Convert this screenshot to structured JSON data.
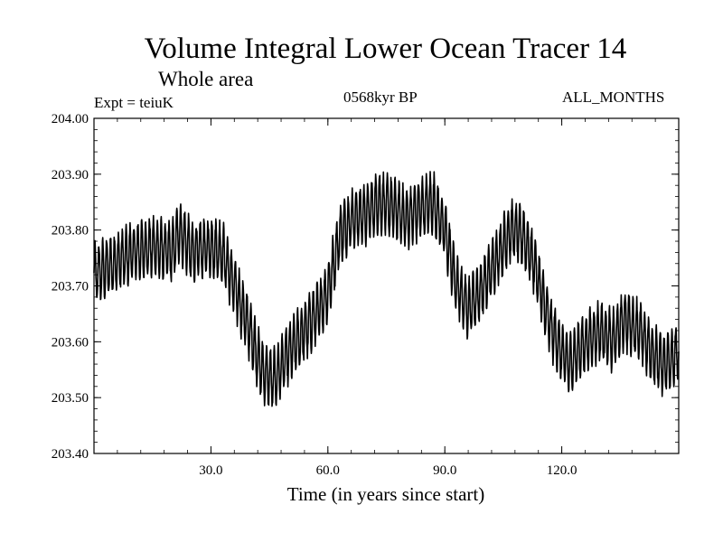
{
  "header": {
    "title": "Volume Integral Lower Ocean Tracer 14",
    "subtitle": "Whole area",
    "experiment": "Expt = teiuK",
    "period": "0568kyr BP",
    "months": "ALL_MONTHS"
  },
  "chart_data": {
    "type": "line",
    "title": "Volume Integral Lower Ocean Tracer 14",
    "subtitle": "Whole area",
    "xlabel": "Time (in years since start)",
    "ylabel": "",
    "xlim": [
      0,
      150
    ],
    "ylim": [
      203.4,
      204.0
    ],
    "xticks": [
      {
        "value": 30,
        "label": "30.0"
      },
      {
        "value": 60,
        "label": "60.0"
      },
      {
        "value": 90,
        "label": "90.0"
      },
      {
        "value": 120,
        "label": "120.0"
      }
    ],
    "yticks": [
      {
        "value": 203.4,
        "label": "203.40"
      },
      {
        "value": 203.5,
        "label": "203.50"
      },
      {
        "value": 203.6,
        "label": "203.60"
      },
      {
        "value": 203.7,
        "label": "203.70"
      },
      {
        "value": 203.8,
        "label": "203.80"
      },
      {
        "value": 203.9,
        "label": "203.90"
      },
      {
        "value": 204.0,
        "label": "204.00"
      }
    ],
    "grid": false,
    "series": [
      {
        "name": "Tracer 14",
        "note": "monthly values oscillating with an annual cycle of about ±0.05 around the envelope below",
        "seasonal_amplitude": 0.05,
        "envelope_x": [
          0,
          5,
          10,
          15,
          20,
          22,
          25,
          30,
          33,
          37,
          40,
          43,
          46,
          50,
          55,
          58,
          60,
          63,
          66,
          70,
          73,
          77,
          80,
          84,
          87,
          90,
          93,
          96,
          100,
          104,
          107,
          110,
          113,
          115,
          117,
          120,
          122,
          125,
          128,
          130,
          133,
          136,
          140,
          143,
          146,
          150
        ],
        "envelope_y": [
          203.72,
          203.74,
          203.76,
          203.77,
          203.76,
          203.8,
          203.76,
          203.77,
          203.76,
          203.68,
          203.62,
          203.55,
          203.53,
          203.58,
          203.63,
          203.66,
          203.69,
          203.79,
          203.82,
          203.83,
          203.85,
          203.84,
          203.82,
          203.84,
          203.85,
          203.8,
          203.7,
          203.66,
          203.7,
          203.76,
          203.8,
          203.79,
          203.74,
          203.68,
          203.63,
          203.58,
          203.56,
          203.59,
          203.61,
          203.62,
          203.6,
          203.64,
          203.62,
          203.58,
          203.56,
          203.58
        ]
      }
    ]
  }
}
